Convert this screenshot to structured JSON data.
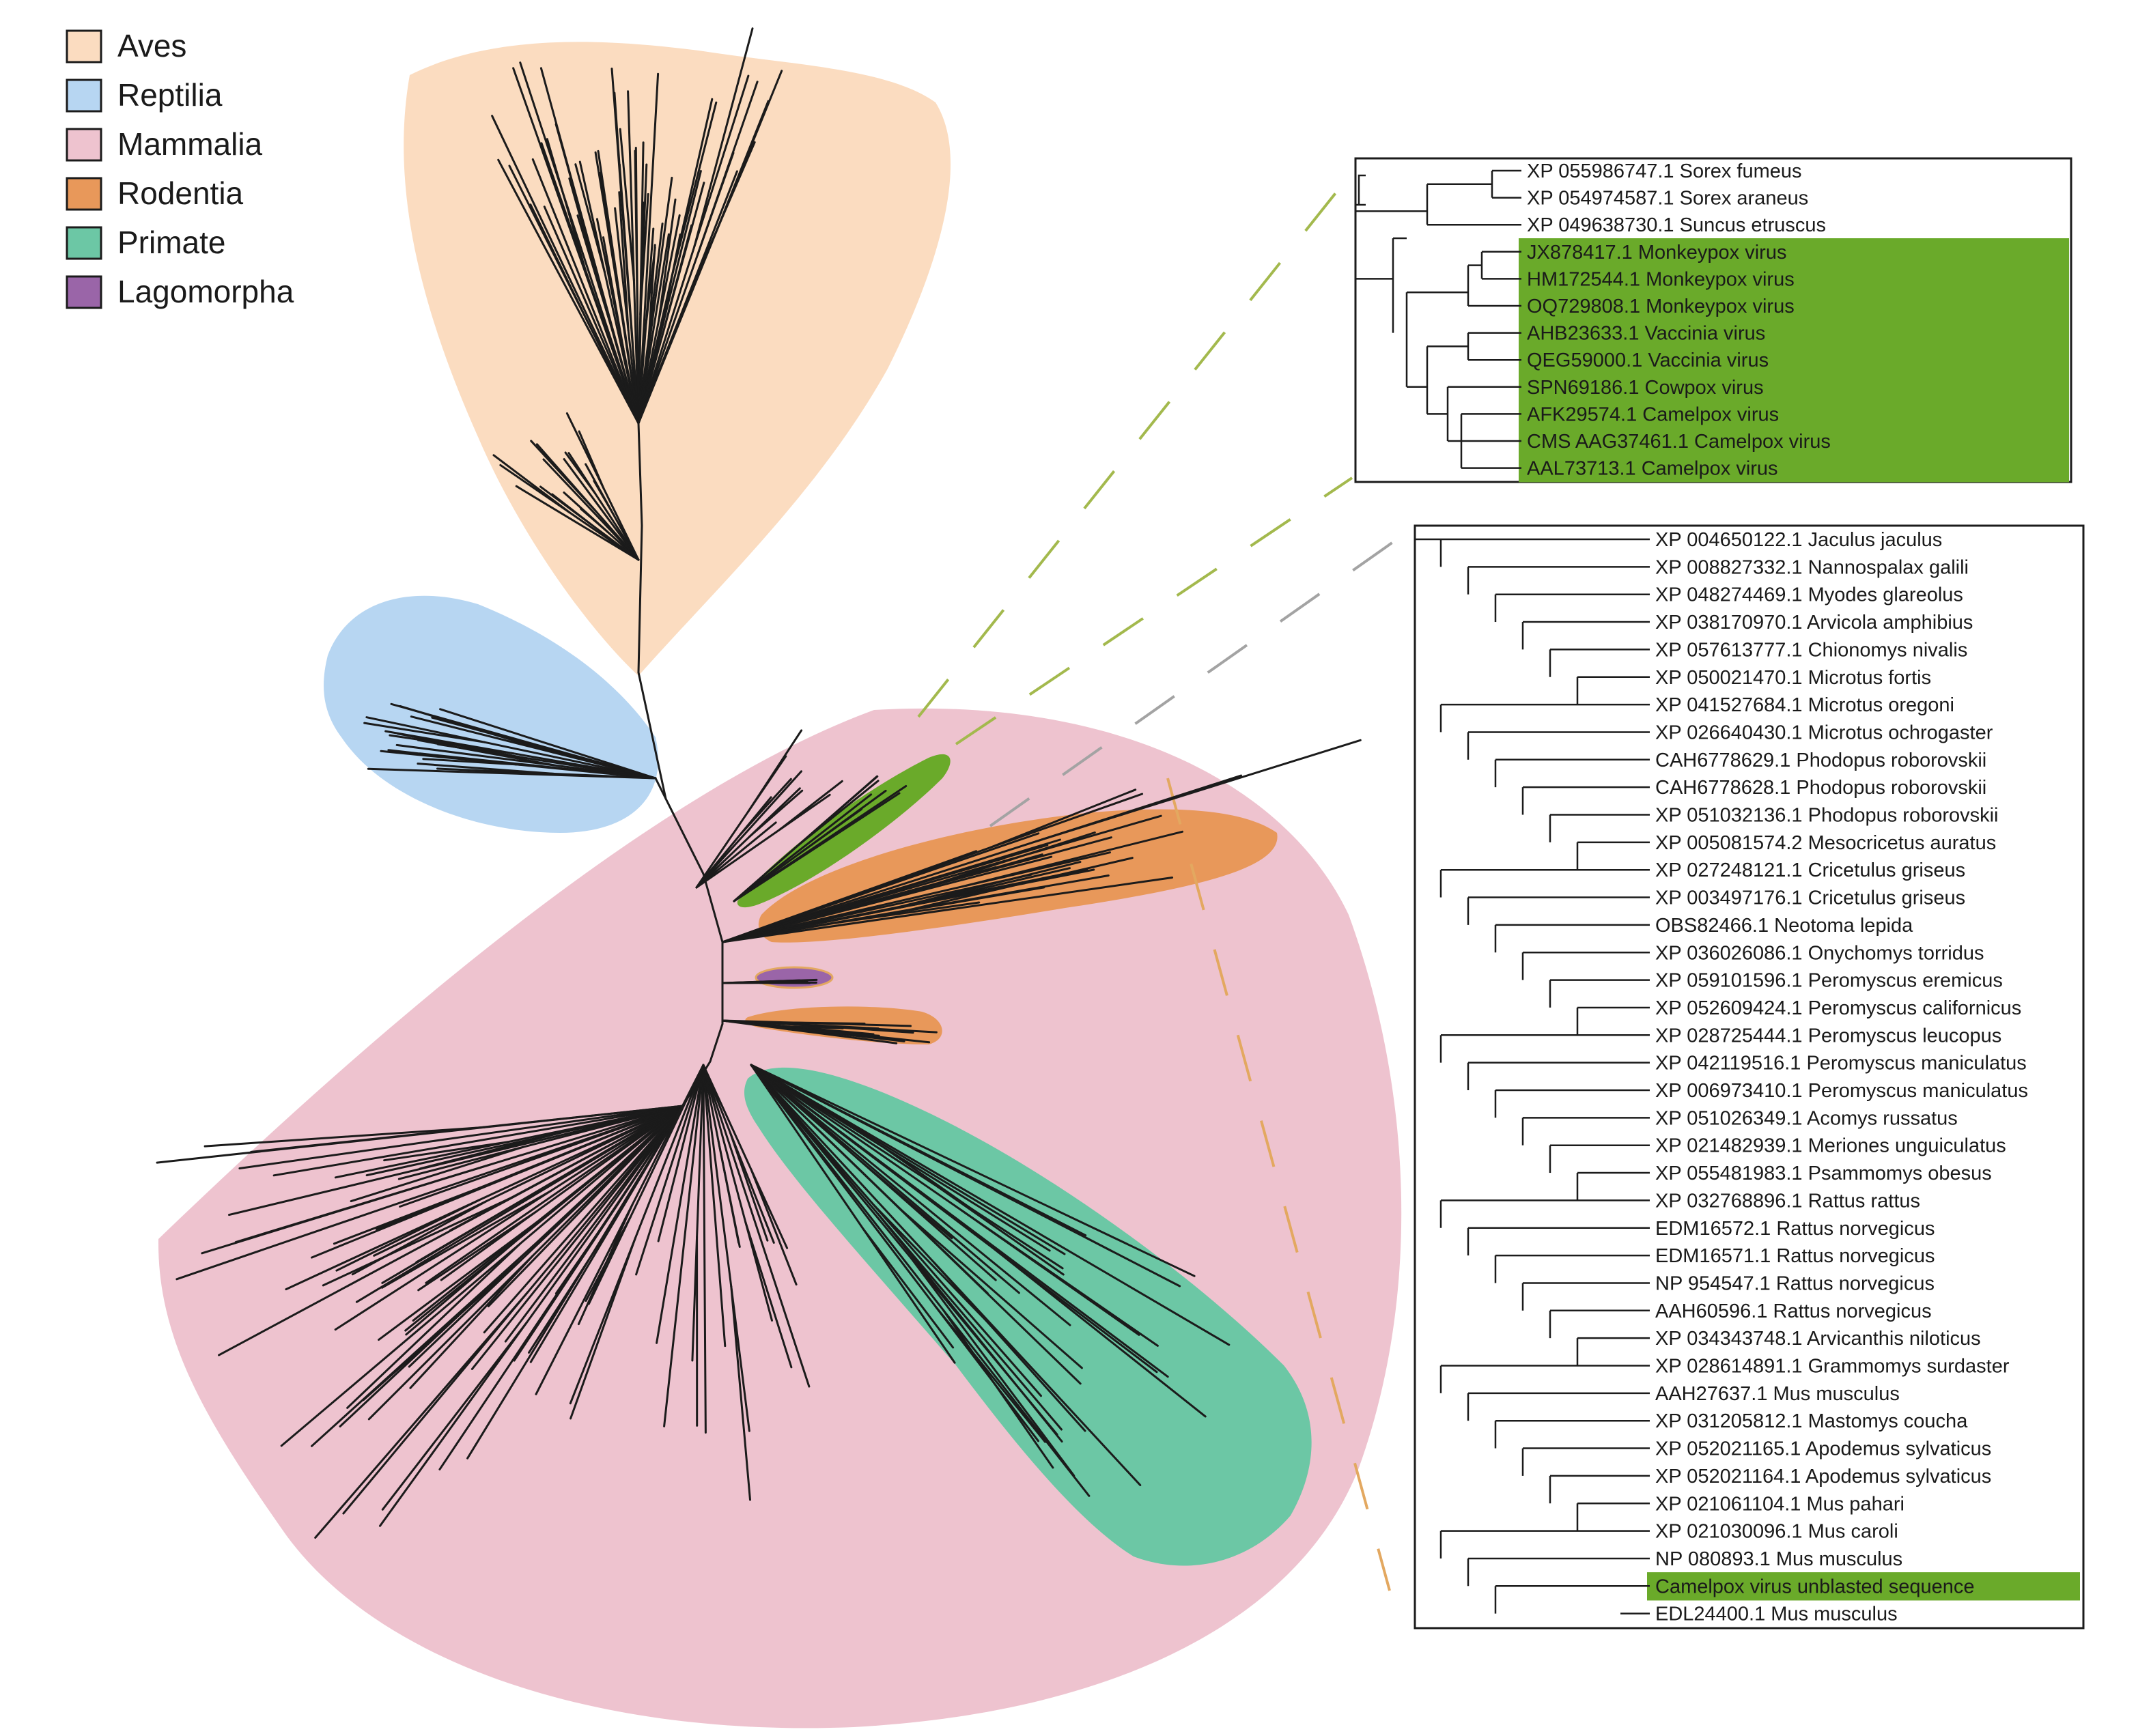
{
  "colors": {
    "aves": "#fbdcc0",
    "reptilia": "#b7d6f2",
    "mammalia": "#eec3cf",
    "rodentia": "#e8985a",
    "primate": "#6cc7a5",
    "lagomorpha": "#9a65a8",
    "virus_highlight": "#6aaa2a",
    "branch": "#1b1b1b",
    "connector_green": "#a3b94d",
    "connector_orange": "#e3a860"
  },
  "legend": [
    {
      "label": "Aves",
      "color_key": "aves"
    },
    {
      "label": "Reptilia",
      "color_key": "reptilia"
    },
    {
      "label": "Mammalia",
      "color_key": "mammalia"
    },
    {
      "label": "Rodentia",
      "color_key": "rodentia"
    },
    {
      "label": "Primate",
      "color_key": "primate"
    },
    {
      "label": "Lagomorpha",
      "color_key": "lagomorpha"
    }
  ],
  "inset_top": {
    "leaves": [
      {
        "label": "XP 055986747.1 Sorex fumeus",
        "highlight": false
      },
      {
        "label": "XP 054974587.1 Sorex araneus",
        "highlight": false
      },
      {
        "label": "XP 049638730.1 Suncus etruscus",
        "highlight": false
      },
      {
        "label": "JX878417.1 Monkeypox virus",
        "highlight": true
      },
      {
        "label": "HM172544.1 Monkeypox virus",
        "highlight": true
      },
      {
        "label": "OQ729808.1 Monkeypox virus",
        "highlight": true
      },
      {
        "label": "AHB23633.1 Vaccinia virus",
        "highlight": true
      },
      {
        "label": "QEG59000.1 Vaccinia virus",
        "highlight": true
      },
      {
        "label": "SPN69186.1 Cowpox virus",
        "highlight": true
      },
      {
        "label": "AFK29574.1 Camelpox virus",
        "highlight": true
      },
      {
        "label": "CMS AAG37461.1 Camelpox virus",
        "highlight": true
      },
      {
        "label": "AAL73713.1 Camelpox virus",
        "highlight": true
      }
    ]
  },
  "inset_bottom": {
    "leaves": [
      {
        "label": "XP 004650122.1 Jaculus jaculus",
        "highlight": false
      },
      {
        "label": "XP 008827332.1 Nannospalax galili",
        "highlight": false
      },
      {
        "label": "XP 048274469.1 Myodes glareolus",
        "highlight": false
      },
      {
        "label": "XP 038170970.1 Arvicola amphibius",
        "highlight": false
      },
      {
        "label": "XP 057613777.1 Chionomys nivalis",
        "highlight": false
      },
      {
        "label": "XP 050021470.1 Microtus fortis",
        "highlight": false
      },
      {
        "label": "XP 041527684.1 Microtus oregoni",
        "highlight": false
      },
      {
        "label": "XP 026640430.1 Microtus ochrogaster",
        "highlight": false
      },
      {
        "label": "CAH6778629.1 Phodopus roborovskii",
        "highlight": false
      },
      {
        "label": "CAH6778628.1 Phodopus roborovskii",
        "highlight": false
      },
      {
        "label": "XP 051032136.1 Phodopus roborovskii",
        "highlight": false
      },
      {
        "label": "XP 005081574.2 Mesocricetus auratus",
        "highlight": false
      },
      {
        "label": "XP 027248121.1 Cricetulus griseus",
        "highlight": false
      },
      {
        "label": "XP 003497176.1 Cricetulus griseus",
        "highlight": false
      },
      {
        "label": "OBS82466.1 Neotoma lepida",
        "highlight": false
      },
      {
        "label": "XP 036026086.1 Onychomys torridus",
        "highlight": false
      },
      {
        "label": "XP 059101596.1 Peromyscus eremicus",
        "highlight": false
      },
      {
        "label": "XP 052609424.1 Peromyscus californicus",
        "highlight": false
      },
      {
        "label": "XP 028725444.1 Peromyscus leucopus",
        "highlight": false
      },
      {
        "label": "XP 042119516.1 Peromyscus maniculatus",
        "highlight": false
      },
      {
        "label": "XP 006973410.1 Peromyscus maniculatus",
        "highlight": false
      },
      {
        "label": "XP 051026349.1 Acomys russatus",
        "highlight": false
      },
      {
        "label": "XP 021482939.1 Meriones unguiculatus",
        "highlight": false
      },
      {
        "label": "XP 055481983.1 Psammomys obesus",
        "highlight": false
      },
      {
        "label": "XP 032768896.1 Rattus rattus",
        "highlight": false
      },
      {
        "label": "EDM16572.1 Rattus norvegicus",
        "highlight": false
      },
      {
        "label": "EDM16571.1 Rattus norvegicus",
        "highlight": false
      },
      {
        "label": "NP 954547.1 Rattus norvegicus",
        "highlight": false
      },
      {
        "label": "AAH60596.1 Rattus norvegicus",
        "highlight": false
      },
      {
        "label": "XP 034343748.1 Arvicanthis niloticus",
        "highlight": false
      },
      {
        "label": "XP 028614891.1 Grammomys surdaster",
        "highlight": false
      },
      {
        "label": "AAH27637.1 Mus musculus",
        "highlight": false
      },
      {
        "label": "XP 031205812.1 Mastomys coucha",
        "highlight": false
      },
      {
        "label": "XP 052021165.1 Apodemus sylvaticus",
        "highlight": false
      },
      {
        "label": "XP 052021164.1 Apodemus sylvaticus",
        "highlight": false
      },
      {
        "label": "XP 021061104.1 Mus pahari",
        "highlight": false
      },
      {
        "label": "XP 021030096.1 Mus caroli",
        "highlight": false
      },
      {
        "label": "NP 080893.1 Mus musculus",
        "highlight": false
      },
      {
        "label": "Camelpox virus unblasted sequence",
        "highlight": true
      },
      {
        "label": "EDL24400.1 Mus musculus",
        "highlight": false
      }
    ]
  }
}
